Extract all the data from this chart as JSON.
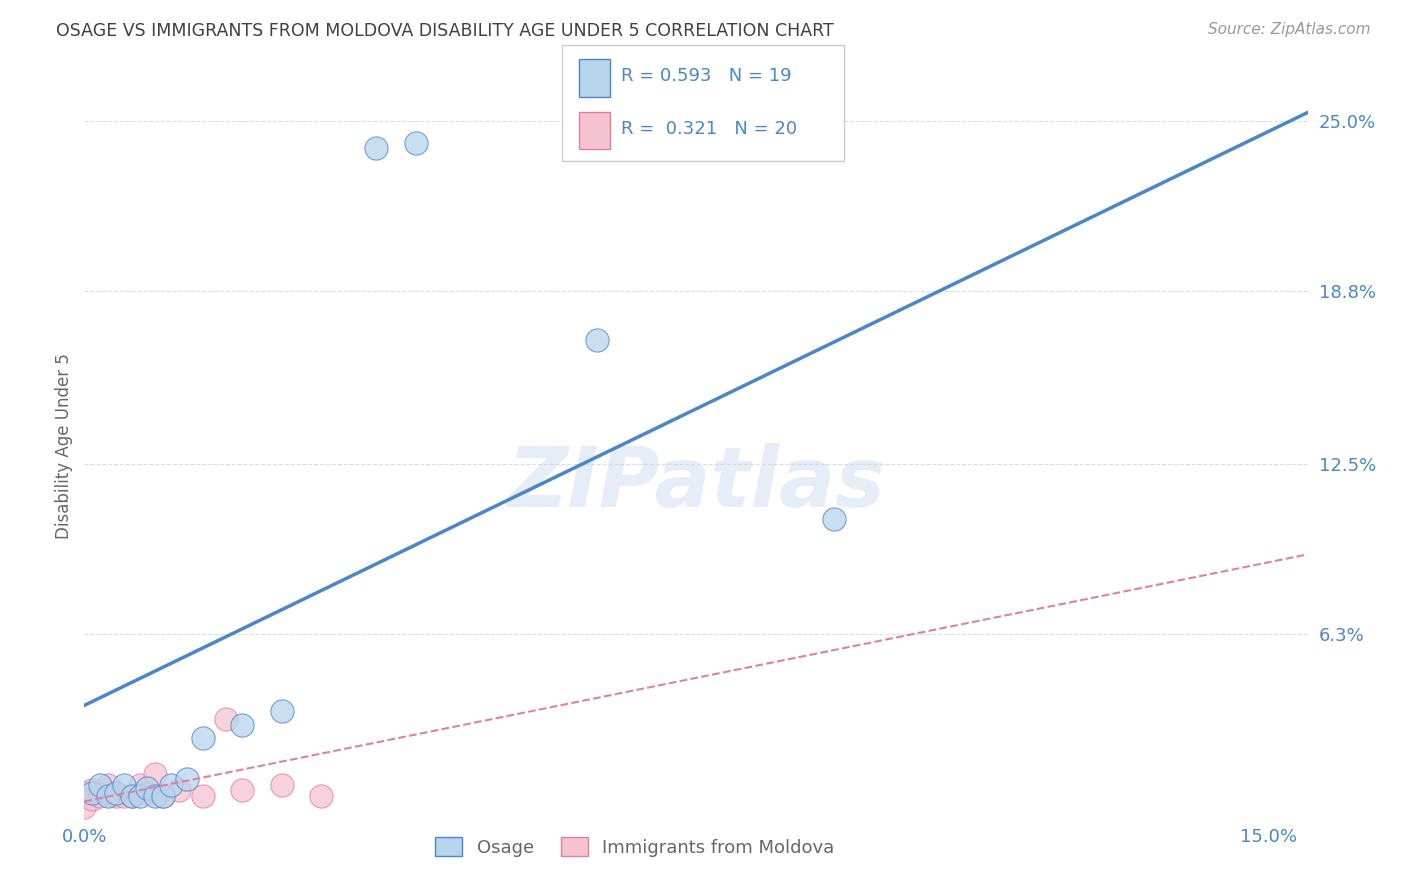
{
  "title": "OSAGE VS IMMIGRANTS FROM MOLDOVA DISABILITY AGE UNDER 5 CORRELATION CHART",
  "source": "Source: ZipAtlas.com",
  "ylabel": "Disability Age Under 5",
  "xlim": [
    0.0,
    0.155
  ],
  "ylim": [
    -0.005,
    0.268
  ],
  "xticks": [
    0.0,
    0.03,
    0.06,
    0.09,
    0.12,
    0.15
  ],
  "xticklabels": [
    "0.0%",
    "",
    "",
    "",
    "",
    "15.0%"
  ],
  "ytick_positions": [
    0.0,
    0.063,
    0.125,
    0.188,
    0.25
  ],
  "ytick_labels": [
    "",
    "6.3%",
    "12.5%",
    "18.8%",
    "25.0%"
  ],
  "osage_R": 0.593,
  "osage_N": 19,
  "moldova_R": 0.321,
  "moldova_N": 20,
  "osage_scatter_color": "#b8d4ec",
  "moldova_scatter_color": "#f5c2d0",
  "osage_line_color": "#4a86c8",
  "moldova_line_color": "#e080a0",
  "osage_edge_color": "#4a86c8",
  "moldova_edge_color": "#e080a0",
  "watermark": "ZIPatlas",
  "legend_items": [
    "Osage",
    "Immigrants from Moldova"
  ],
  "osage_x": [
    0.001,
    0.002,
    0.003,
    0.004,
    0.005,
    0.006,
    0.007,
    0.008,
    0.009,
    0.01,
    0.011,
    0.013,
    0.015,
    0.02,
    0.025,
    0.037,
    0.042,
    0.065,
    0.095
  ],
  "osage_y": [
    0.005,
    0.008,
    0.004,
    0.005,
    0.008,
    0.004,
    0.004,
    0.007,
    0.004,
    0.004,
    0.008,
    0.01,
    0.025,
    0.03,
    0.035,
    0.24,
    0.242,
    0.17,
    0.105
  ],
  "moldova_x": [
    0.0,
    0.0,
    0.001,
    0.001,
    0.002,
    0.003,
    0.003,
    0.004,
    0.005,
    0.006,
    0.007,
    0.008,
    0.009,
    0.01,
    0.012,
    0.015,
    0.018,
    0.02,
    0.025,
    0.03
  ],
  "moldova_y": [
    0.0,
    0.005,
    0.003,
    0.006,
    0.004,
    0.005,
    0.008,
    0.004,
    0.004,
    0.004,
    0.008,
    0.005,
    0.012,
    0.004,
    0.006,
    0.004,
    0.032,
    0.006,
    0.008,
    0.004
  ],
  "osage_line_x": [
    0.0,
    0.155
  ],
  "osage_line_y": [
    0.037,
    0.253
  ],
  "moldova_line_x": [
    0.0,
    0.155
  ],
  "moldova_line_y": [
    0.002,
    0.092
  ],
  "background_color": "#ffffff",
  "grid_color": "#dddddd",
  "title_color": "#404040",
  "axis_label_color": "#666666",
  "tick_color": "#4a86c8",
  "source_color": "#999999",
  "legend_box_color": "#f0f4fa",
  "legend_border_color": "#cccccc"
}
